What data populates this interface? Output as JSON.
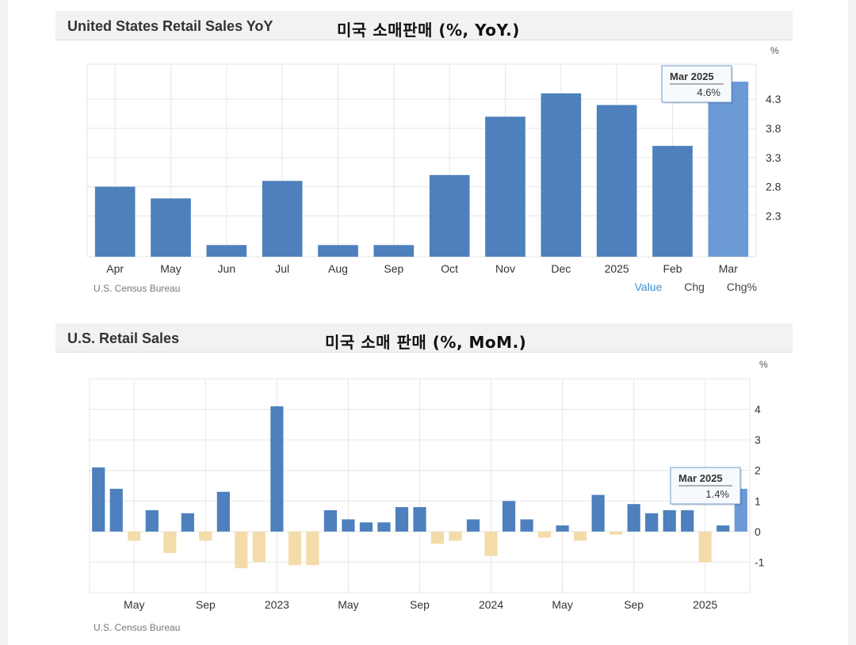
{
  "charts": [
    {
      "header_title": "United States Retail Sales YoY",
      "header_subtitle": "미국 소매판매 (%, YoY.)",
      "source": "U.S. Census Bureau",
      "tabs": [
        "Value",
        "Chg",
        "Chg%"
      ],
      "active_tab": "Value",
      "tooltip": {
        "period": "Mar 2025",
        "value": "4.6%"
      }
    },
    {
      "header_title": "U.S. Retail Sales",
      "header_subtitle": "미국 소매 판매 (%, MoM.)",
      "source": "U.S. Census Bureau",
      "tooltip": {
        "period": "Mar 2025",
        "value": "1.4%"
      }
    }
  ],
  "colors": {
    "bar": "#4d80bc",
    "highlight": "#6b9ad6",
    "negative": "#f4dcaa",
    "grid": "#e6e6e6"
  },
  "chart_data": [
    {
      "type": "bar",
      "unit": "%",
      "categories": [
        "Apr",
        "May",
        "Jun",
        "Jul",
        "Aug",
        "Sep",
        "Oct",
        "Nov",
        "Dec",
        "2025",
        "Feb",
        "Mar"
      ],
      "values": [
        2.8,
        2.6,
        1.8,
        2.9,
        1.8,
        1.8,
        3.0,
        4.0,
        4.4,
        4.2,
        3.5,
        4.6
      ],
      "highlight_index": 11,
      "yticks": [
        2.3,
        2.8,
        3.3,
        3.8,
        4.3
      ],
      "ylim": [
        1.6,
        4.9
      ],
      "grid": true
    },
    {
      "type": "bar",
      "unit": "%",
      "x_labels": [
        "May",
        "Sep",
        "2023",
        "May",
        "Sep",
        "2024",
        "May",
        "Sep",
        "2025"
      ],
      "x_label_positions": [
        2.5,
        6.5,
        10.5,
        14.5,
        18.5,
        22.5,
        26.5,
        30.5,
        34.5
      ],
      "values": [
        2.1,
        1.4,
        -0.3,
        0.7,
        -0.7,
        0.6,
        -0.3,
        1.3,
        -1.2,
        -1.0,
        4.1,
        -1.1,
        -1.1,
        0.7,
        0.4,
        0.3,
        0.3,
        0.8,
        0.8,
        -0.4,
        -0.3,
        0.4,
        -0.8,
        1.0,
        0.4,
        -0.2,
        0.2,
        -0.3,
        1.2,
        -0.1,
        0.9,
        0.6,
        0.7,
        0.7,
        -1.0,
        0.2,
        1.4
      ],
      "highlight_index": 36,
      "yticks": [
        -1,
        0,
        1,
        2,
        3,
        4
      ],
      "ylim": [
        -2.0,
        5.0
      ],
      "grid": true
    }
  ]
}
